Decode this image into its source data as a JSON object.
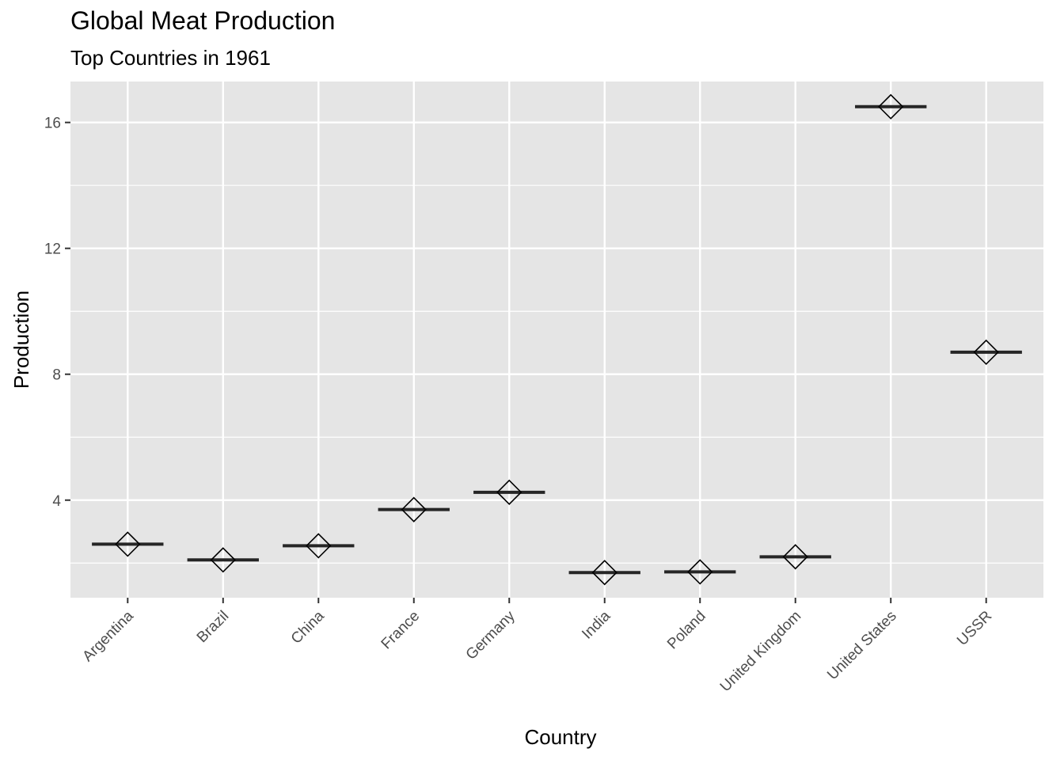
{
  "chart_data": {
    "type": "crossbar",
    "title": "Global Meat Production",
    "subtitle": "Top Countries in 1961",
    "xlabel": "Country",
    "ylabel": "Production",
    "categories": [
      "Argentina",
      "Brazil",
      "China",
      "France",
      "Germany",
      "India",
      "Poland",
      "United Kingdom",
      "United States",
      "USSR"
    ],
    "values": [
      2.6,
      2.1,
      2.55,
      3.7,
      4.25,
      1.7,
      1.72,
      2.2,
      16.5,
      8.7
    ],
    "ylim": [
      0.9,
      17.3
    ],
    "yticks": [
      4,
      8,
      12,
      16
    ],
    "grid": true,
    "marker": "diamond-open",
    "colors": {
      "panel": "#e5e5e5",
      "grid": "#ffffff",
      "bar": "#262626",
      "marker": "#000000"
    }
  }
}
